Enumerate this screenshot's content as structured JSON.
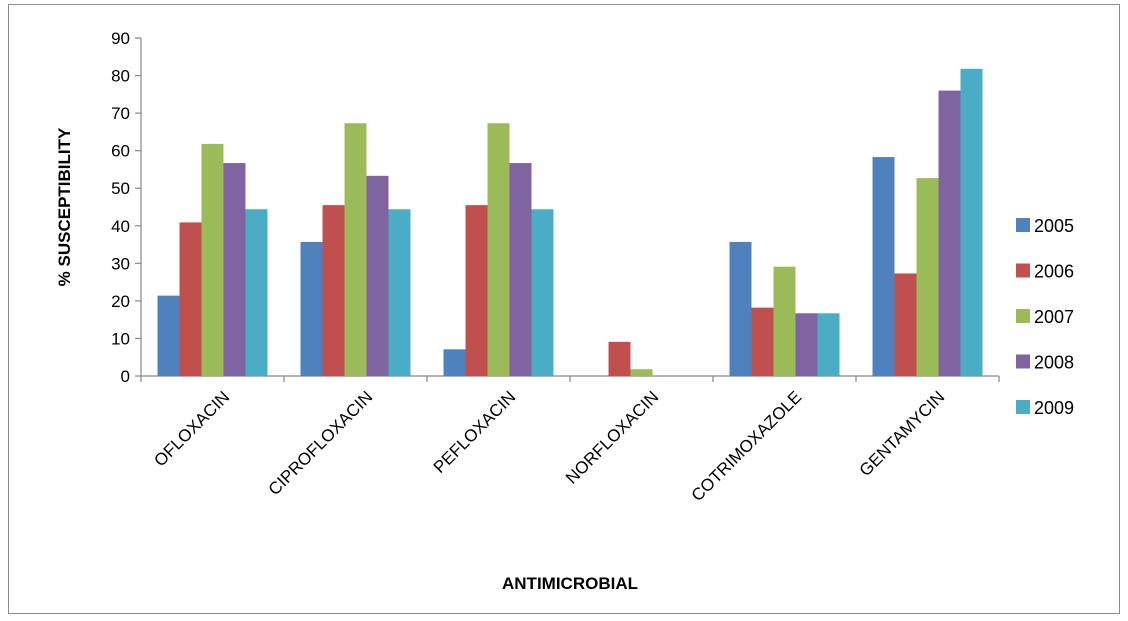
{
  "chart_data": {
    "type": "bar",
    "title": "",
    "xlabel": "ANTIMICROBIAL",
    "ylabel": "% SUSCEPTIBILITY",
    "ylim": [
      0,
      90
    ],
    "yticks": [
      0,
      10,
      20,
      30,
      40,
      50,
      60,
      70,
      80,
      90
    ],
    "grid": false,
    "legend_position": "right",
    "categories": [
      "OFLOXACIN",
      "CIPROFLOXACIN",
      "PEFLOXACIN",
      "NORFLOXACIN",
      "COTRIMOXAZOLE",
      "GENTAMYCIN"
    ],
    "series": [
      {
        "name": "2005",
        "color": "#4F81BD",
        "values": [
          21.4,
          35.7,
          7.1,
          0,
          35.7,
          58.3
        ]
      },
      {
        "name": "2006",
        "color": "#C0504D",
        "values": [
          40.9,
          45.5,
          45.5,
          9.1,
          18.2,
          27.3
        ]
      },
      {
        "name": "2007",
        "color": "#9BBB59",
        "values": [
          61.8,
          67.3,
          67.3,
          1.8,
          29.1,
          52.7
        ]
      },
      {
        "name": "2008",
        "color": "#8064A2",
        "values": [
          56.7,
          53.3,
          56.7,
          0,
          16.7,
          76.0
        ]
      },
      {
        "name": "2009",
        "color": "#4BACC6",
        "values": [
          44.4,
          44.4,
          44.4,
          0,
          16.7,
          81.8
        ]
      }
    ]
  }
}
